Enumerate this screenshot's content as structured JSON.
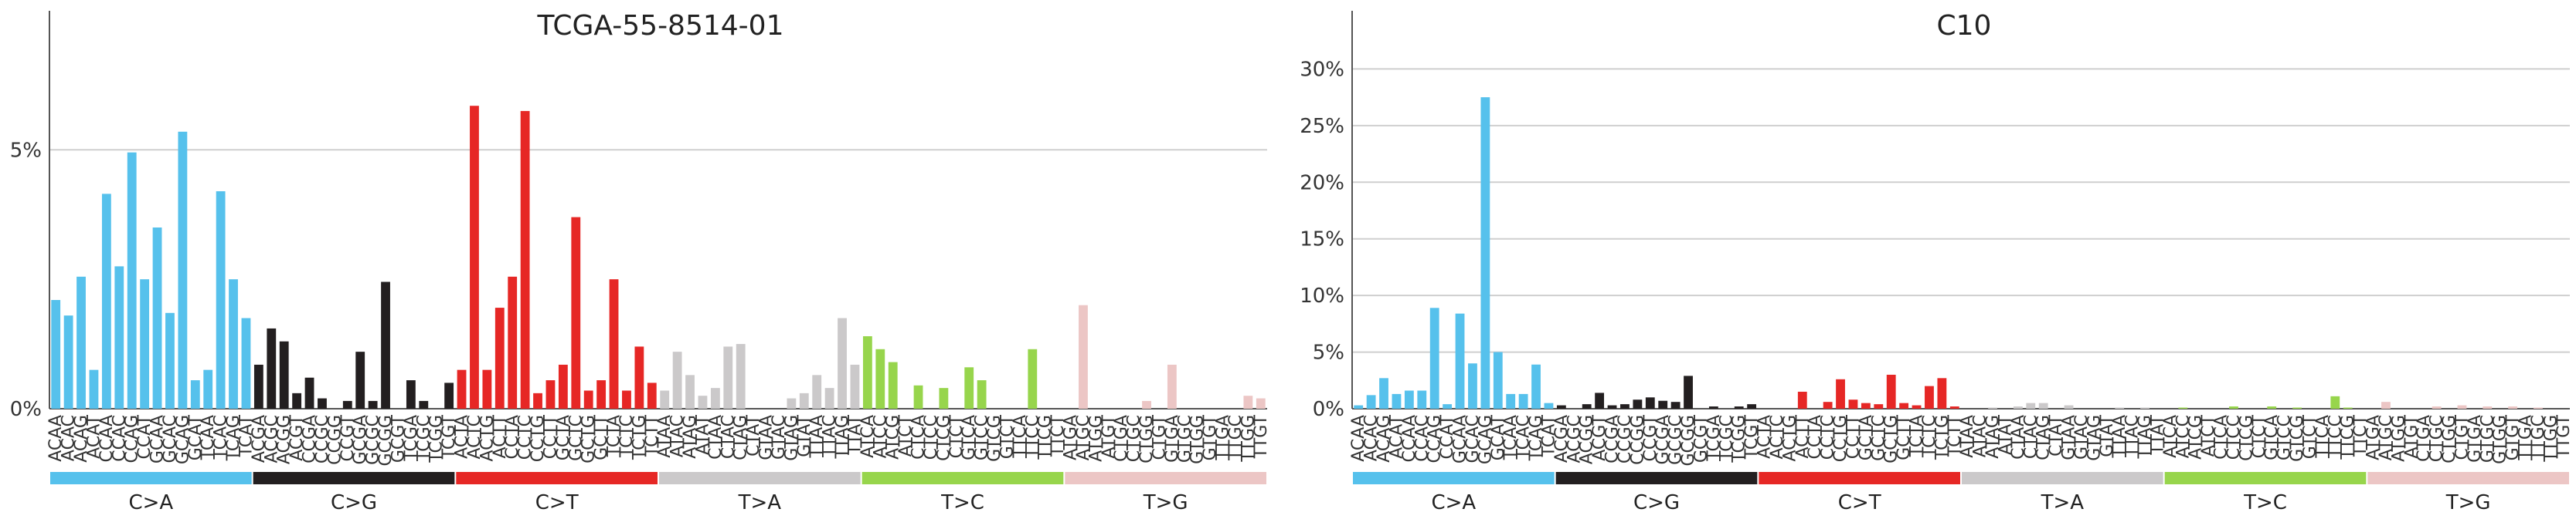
{
  "chart_data": [
    {
      "type": "bar",
      "title": "TCGA-55-8514-01",
      "yticks": [
        "0%",
        "5%"
      ],
      "ylim": [
        0,
        0.07
      ],
      "grid": "horizontal",
      "categories": [
        "ACAA",
        "ACAC",
        "ACAG",
        "ACAT",
        "CCAA",
        "CCAC",
        "CCAG",
        "CCAT",
        "GCAA",
        "GCAC",
        "GCAG",
        "GCAT",
        "TCAA",
        "TCAC",
        "TCAG",
        "TCAT",
        "ACGA",
        "ACGC",
        "ACGG",
        "ACGT",
        "CCGA",
        "CCGC",
        "CCGG",
        "CCGT",
        "GCGA",
        "GCGC",
        "GCGG",
        "GCGT",
        "TCGA",
        "TCGC",
        "TCGG",
        "TCGT",
        "ACTA",
        "ACTC",
        "ACTG",
        "ACTT",
        "CCTA",
        "CCTC",
        "CCTG",
        "CCTT",
        "GCTA",
        "GCTC",
        "GCTG",
        "GCTT",
        "TCTA",
        "TCTC",
        "TCTG",
        "TCTT",
        "ATAA",
        "ATAC",
        "ATAG",
        "ATAT",
        "CTAA",
        "CTAC",
        "CTAG",
        "CTAT",
        "GTAA",
        "GTAC",
        "GTAG",
        "GTAT",
        "TTAA",
        "TTAC",
        "TTAG",
        "TTAT",
        "ATCA",
        "ATCC",
        "ATCG",
        "ATCT",
        "CTCA",
        "CTCC",
        "CTCG",
        "CTCT",
        "GTCA",
        "GTCC",
        "GTCG",
        "GTCT",
        "TTCA",
        "TTCC",
        "TTCG",
        "TTCT",
        "ATGA",
        "ATGC",
        "ATGG",
        "ATGT",
        "CTGA",
        "CTGC",
        "CTGG",
        "CTGT",
        "GTGA",
        "GTGC",
        "GTGG",
        "GTGT",
        "TTGA",
        "TTGC",
        "TTGG",
        "TTGT"
      ],
      "groups": [
        "C>A",
        "C>G",
        "C>T",
        "T>A",
        "T>C",
        "T>G"
      ],
      "group_colors": [
        "#56c1ec",
        "#231f20",
        "#e62725",
        "#cbc9ca",
        "#97d54c",
        "#ecc6c5"
      ],
      "values": [
        0.021,
        0.018,
        0.0255,
        0.0075,
        0.0415,
        0.0275,
        0.0495,
        0.025,
        0.035,
        0.0185,
        0.0535,
        0.0055,
        0.0075,
        0.042,
        0.025,
        0.0175,
        0.0085,
        0.0155,
        0.013,
        0.003,
        0.006,
        0.002,
        0,
        0.0015,
        0.011,
        0.0015,
        0.0245,
        0,
        0.0055,
        0.0015,
        0,
        0.005,
        0.0075,
        0.0585,
        0.0075,
        0.0195,
        0.0255,
        0.0575,
        0.003,
        0.0055,
        0.0085,
        0.037,
        0.0035,
        0.0055,
        0.025,
        0.0035,
        0.012,
        0.005,
        0.0035,
        0.011,
        0.0065,
        0.0025,
        0.004,
        0.012,
        0.0125,
        0,
        0,
        0,
        0.002,
        0.003,
        0.0065,
        0.004,
        0.0175,
        0.0085,
        0.014,
        0.0115,
        0.009,
        0,
        0.0045,
        0,
        0.004,
        0,
        0.008,
        0.0055,
        0,
        0,
        0,
        0.0115,
        0,
        0,
        0,
        0.02,
        0,
        0,
        0,
        0,
        0.0015,
        0,
        0.0085,
        0,
        0,
        0,
        0,
        0,
        0.0025,
        0.002
      ]
    },
    {
      "type": "bar",
      "title": "C10",
      "yticks": [
        "0%",
        "5%",
        "10%",
        "15%",
        "20%",
        "25%",
        "30%"
      ],
      "ylim": [
        0,
        0.32
      ],
      "grid": "horizontal",
      "categories": [
        "ACAA",
        "ACAC",
        "ACAG",
        "ACAT",
        "CCAA",
        "CCAC",
        "CCAG",
        "CCAT",
        "GCAA",
        "GCAC",
        "GCAG",
        "GCAT",
        "TCAA",
        "TCAC",
        "TCAG",
        "TCAT",
        "ACGA",
        "ACGC",
        "ACGG",
        "ACGT",
        "CCGA",
        "CCGC",
        "CCGG",
        "CCGT",
        "GCGA",
        "GCGC",
        "GCGG",
        "GCGT",
        "TCGA",
        "TCGC",
        "TCGG",
        "TCGT",
        "ACTA",
        "ACTC",
        "ACTG",
        "ACTT",
        "CCTA",
        "CCTC",
        "CCTG",
        "CCTT",
        "GCTA",
        "GCTC",
        "GCTG",
        "GCTT",
        "TCTA",
        "TCTC",
        "TCTG",
        "TCTT",
        "ATAA",
        "ATAC",
        "ATAG",
        "ATAT",
        "CTAA",
        "CTAC",
        "CTAG",
        "CTAT",
        "GTAA",
        "GTAC",
        "GTAG",
        "GTAT",
        "TTAA",
        "TTAC",
        "TTAG",
        "TTAT",
        "ATCA",
        "ATCC",
        "ATCG",
        "ATCT",
        "CTCA",
        "CTCC",
        "CTCG",
        "CTCT",
        "GTCA",
        "GTCC",
        "GTCG",
        "GTCT",
        "TTCA",
        "TTCC",
        "TTCG",
        "TTCT",
        "ATGA",
        "ATGC",
        "ATGG",
        "ATGT",
        "CTGA",
        "CTGC",
        "CTGG",
        "CTGT",
        "GTGA",
        "GTGC",
        "GTGG",
        "GTGT",
        "TTGA",
        "TTGC",
        "TTGG",
        "TTGT"
      ],
      "groups": [
        "C>A",
        "C>G",
        "C>T",
        "T>A",
        "T>C",
        "T>G"
      ],
      "group_colors": [
        "#56c1ec",
        "#231f20",
        "#e62725",
        "#cbc9ca",
        "#97d54c",
        "#ecc6c5"
      ],
      "values": [
        0.003,
        0.012,
        0.027,
        0.013,
        0.016,
        0.016,
        0.089,
        0.004,
        0.084,
        0.04,
        0.275,
        0.05,
        0.013,
        0.013,
        0.039,
        0.005,
        0.003,
        0,
        0.004,
        0.014,
        0.003,
        0.004,
        0.008,
        0.01,
        0.007,
        0.006,
        0.029,
        0,
        0.002,
        0,
        0.002,
        0.004,
        0,
        0,
        0,
        0.015,
        0,
        0.006,
        0.026,
        0.008,
        0.005,
        0.004,
        0.03,
        0.005,
        0.003,
        0.02,
        0.027,
        0.002,
        0,
        0,
        0.001,
        0,
        0.002,
        0.005,
        0.005,
        0,
        0.003,
        0,
        0,
        0,
        0.001,
        0,
        0.001,
        0,
        0,
        0.001,
        0,
        0,
        0,
        0.002,
        0,
        0,
        0.002,
        0,
        0.001,
        0,
        0,
        0.011,
        0.001,
        0,
        0,
        0.006,
        0,
        0,
        0,
        0.002,
        0,
        0.003,
        0,
        0.002,
        0,
        0.002,
        0,
        0.001,
        0,
        0
      ]
    }
  ]
}
